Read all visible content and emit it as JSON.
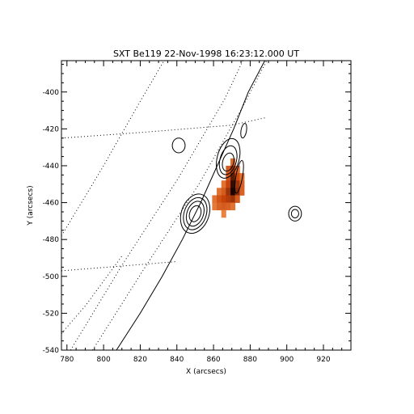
{
  "chart_data": {
    "type": "heatmap",
    "title": "SXT Be119 22-Nov-1998 16:23:12.000 UT",
    "xlabel": "X (arcsecs)",
    "ylabel": "Y (arcsecs)",
    "xlim": [
      777,
      935
    ],
    "ylim": [
      -540,
      -383
    ],
    "xticks": [
      780,
      800,
      820,
      840,
      860,
      880,
      900,
      920
    ],
    "yticks": [
      -400,
      -420,
      -440,
      -460,
      -480,
      -500,
      -520,
      -540
    ],
    "grid": "dotted heliographic grid",
    "colors": {
      "axes": "#000000",
      "heat_low": "#f7a15a",
      "heat_mid": "#c8430a",
      "heat_high": "#1a0400"
    },
    "heatmap_cells": [
      {
        "x": 870.5,
        "y": -438,
        "v": 0.35
      },
      {
        "x": 868,
        "y": -442,
        "v": 0.45
      },
      {
        "x": 870.5,
        "y": -442,
        "v": 0.7
      },
      {
        "x": 873,
        "y": -442,
        "v": 0.35
      },
      {
        "x": 868,
        "y": -446,
        "v": 0.5
      },
      {
        "x": 870.5,
        "y": -446,
        "v": 0.85
      },
      {
        "x": 873,
        "y": -446,
        "v": 0.55
      },
      {
        "x": 875.5,
        "y": -446,
        "v": 0.3
      },
      {
        "x": 865.5,
        "y": -450,
        "v": 0.3
      },
      {
        "x": 868,
        "y": -450,
        "v": 0.6
      },
      {
        "x": 870.5,
        "y": -450,
        "v": 0.95
      },
      {
        "x": 873,
        "y": -450,
        "v": 0.7
      },
      {
        "x": 875.5,
        "y": -450,
        "v": 0.4
      },
      {
        "x": 863,
        "y": -454,
        "v": 0.3
      },
      {
        "x": 865.5,
        "y": -454,
        "v": 0.45
      },
      {
        "x": 868,
        "y": -454,
        "v": 0.7
      },
      {
        "x": 870.5,
        "y": -454,
        "v": 1.0
      },
      {
        "x": 873,
        "y": -454,
        "v": 0.75
      },
      {
        "x": 875.5,
        "y": -454,
        "v": 0.4
      },
      {
        "x": 860.5,
        "y": -458,
        "v": 0.3
      },
      {
        "x": 863,
        "y": -458,
        "v": 0.5
      },
      {
        "x": 865.5,
        "y": -458,
        "v": 0.6
      },
      {
        "x": 868,
        "y": -458,
        "v": 0.65
      },
      {
        "x": 870.5,
        "y": -458,
        "v": 0.7
      },
      {
        "x": 873,
        "y": -458,
        "v": 0.45
      },
      {
        "x": 860.5,
        "y": -462,
        "v": 0.25
      },
      {
        "x": 863,
        "y": -462,
        "v": 0.4
      },
      {
        "x": 865.5,
        "y": -462,
        "v": 0.45
      },
      {
        "x": 868,
        "y": -462,
        "v": 0.4
      },
      {
        "x": 870.5,
        "y": -462,
        "v": 0.3
      },
      {
        "x": 865.5,
        "y": -466,
        "v": 0.2
      }
    ],
    "contours": [
      {
        "name": "c1a",
        "cx": 850,
        "cy": -466,
        "rx": 7.5,
        "ry": 11,
        "rot": -20
      },
      {
        "name": "c1b",
        "cx": 850,
        "cy": -466,
        "rx": 6,
        "ry": 9,
        "rot": -20
      },
      {
        "name": "c1c",
        "cx": 850,
        "cy": -466,
        "rx": 4.5,
        "ry": 7,
        "rot": -20
      },
      {
        "name": "c1d",
        "cx": 850,
        "cy": -466,
        "rx": 3,
        "ry": 4.5,
        "rot": -20
      },
      {
        "name": "c2a",
        "cx": 868,
        "cy": -436,
        "rx": 6,
        "ry": 11,
        "rot": -15
      },
      {
        "name": "c2b",
        "cx": 868,
        "cy": -437,
        "rx": 4.5,
        "ry": 8,
        "rot": -15
      },
      {
        "name": "c2c",
        "cx": 868,
        "cy": -438,
        "rx": 3,
        "ry": 5,
        "rot": -15
      },
      {
        "name": "c2d",
        "cx": 876.5,
        "cy": -421,
        "rx": 1.5,
        "ry": 4,
        "rot": -10
      },
      {
        "name": "c3a",
        "cx": 841,
        "cy": -429,
        "rx": 3.5,
        "ry": 4,
        "rot": 0
      },
      {
        "name": "c4a",
        "cx": 904.5,
        "cy": -466,
        "rx": 3.5,
        "ry": 4,
        "rot": 0
      },
      {
        "name": "c4b",
        "cx": 904.5,
        "cy": -466,
        "rx": 2,
        "ry": 2.3,
        "rot": 0
      },
      {
        "name": "c5a",
        "cx": 874,
        "cy": -446,
        "rx": 1.8,
        "ry": 9,
        "rot": -10
      }
    ],
    "limb": [
      [
        807,
        -540
      ],
      [
        820,
        -520
      ],
      [
        832,
        -500
      ],
      [
        843,
        -480
      ],
      [
        853,
        -460
      ],
      [
        862,
        -440
      ],
      [
        871,
        -420
      ],
      [
        879,
        -400
      ],
      [
        888,
        -383
      ]
    ],
    "grid_lines": [
      [
        [
          777,
          -425
        ],
        [
          820,
          -422
        ],
        [
          870,
          -418
        ],
        [
          888,
          -414
        ]
      ],
      [
        [
          777,
          -497
        ],
        [
          815,
          -494
        ],
        [
          840,
          -492
        ]
      ],
      [
        [
          777,
          -478
        ],
        [
          800,
          -440
        ],
        [
          820,
          -405
        ],
        [
          833,
          -383
        ]
      ],
      [
        [
          782,
          -540
        ],
        [
          810,
          -494
        ],
        [
          840,
          -448
        ],
        [
          866,
          -404
        ],
        [
          876,
          -383
        ]
      ],
      [
        [
          794,
          -540
        ],
        [
          822,
          -496
        ],
        [
          852,
          -450
        ],
        [
          876,
          -408
        ],
        [
          889,
          -383
        ]
      ],
      [
        [
          777,
          -531
        ],
        [
          790,
          -516
        ],
        [
          810,
          -489
        ]
      ]
    ]
  }
}
